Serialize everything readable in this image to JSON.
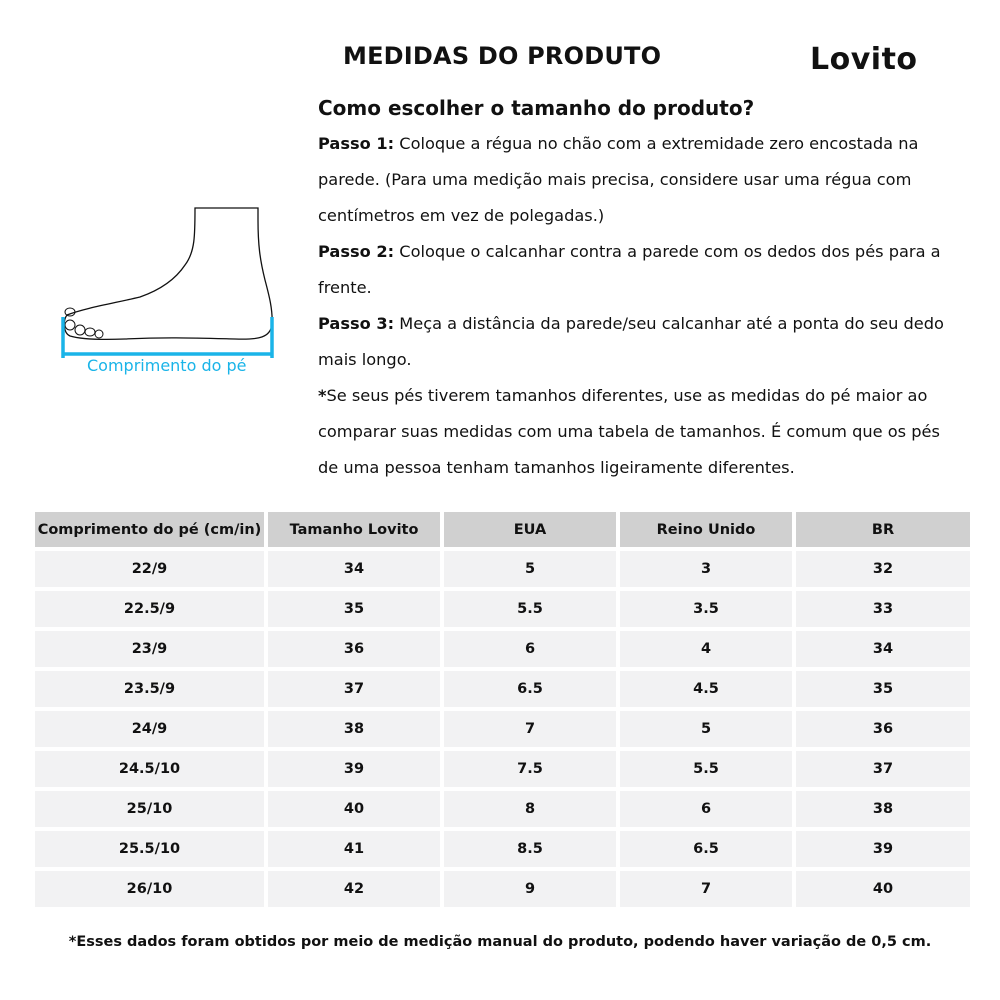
{
  "header": {
    "title": "MEDIDAS DO PRODUTO",
    "logo": "Lovito"
  },
  "guide": {
    "subtitle": "Como escolher o tamanho do produto?",
    "steps": [
      {
        "label": "Passo 1:",
        "text": " Coloque a régua no chão com a extremidade zero encostada na parede. (Para uma medição mais precisa, considere usar uma régua com centímetros em vez de polegadas.)"
      },
      {
        "label": "Passo 2:",
        "text": " Coloque o calcanhar contra a parede com os dedos dos pés para a frente."
      },
      {
        "label": "Passo 3:",
        "text": " Meça a distância da parede/seu calcanhar até a ponta do seu dedo mais longo."
      },
      {
        "label": "*",
        "text": "Se seus pés tiverem tamanhos diferentes, use as medidas do pé maior ao comparar suas medidas com uma tabela de tamanhos. É comum que os pés de uma pessoa tenham tamanhos ligeiramente diferentes."
      }
    ]
  },
  "figure": {
    "label": "Comprimento do pé",
    "accent": "#1ab4e8",
    "icon": "foot-measurement-icon"
  },
  "table": {
    "headers": [
      "Comprimento do pé (cm/in)",
      "Tamanho Lovito",
      "EUA",
      "Reino Unido",
      "BR"
    ],
    "rows": [
      [
        "22/9",
        "34",
        "5",
        "3",
        "32"
      ],
      [
        "22.5/9",
        "35",
        "5.5",
        "3.5",
        "33"
      ],
      [
        "23/9",
        "36",
        "6",
        "4",
        "34"
      ],
      [
        "23.5/9",
        "37",
        "6.5",
        "4.5",
        "35"
      ],
      [
        "24/9",
        "38",
        "7",
        "5",
        "36"
      ],
      [
        "24.5/10",
        "39",
        "7.5",
        "5.5",
        "37"
      ],
      [
        "25/10",
        "40",
        "8",
        "6",
        "38"
      ],
      [
        "25.5/10",
        "41",
        "8.5",
        "6.5",
        "39"
      ],
      [
        "26/10",
        "42",
        "9",
        "7",
        "40"
      ]
    ]
  },
  "note": "*Esses dados foram obtidos por meio de medição manual do produto, podendo haver variação de 0,5 cm."
}
